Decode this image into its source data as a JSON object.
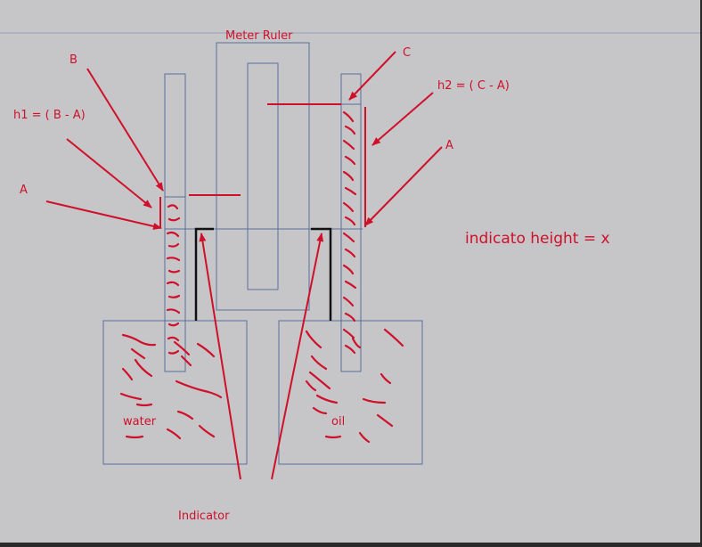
{
  "labels": {
    "meter_ruler": "Meter Ruler",
    "b": "B",
    "c": "C",
    "h1": "h1 = ( B - A)",
    "h2": "h2 = ( C - A)",
    "a_left": "A",
    "a_right": "A",
    "indicator_height": "indicato height = x",
    "water": "water",
    "oil": "oil",
    "indicator": "Indicator"
  },
  "colors": {
    "background": "#c6c6c9",
    "outline": "#5b6f9b",
    "annotation": "#d0102a",
    "indicator_bar": "#111111"
  }
}
